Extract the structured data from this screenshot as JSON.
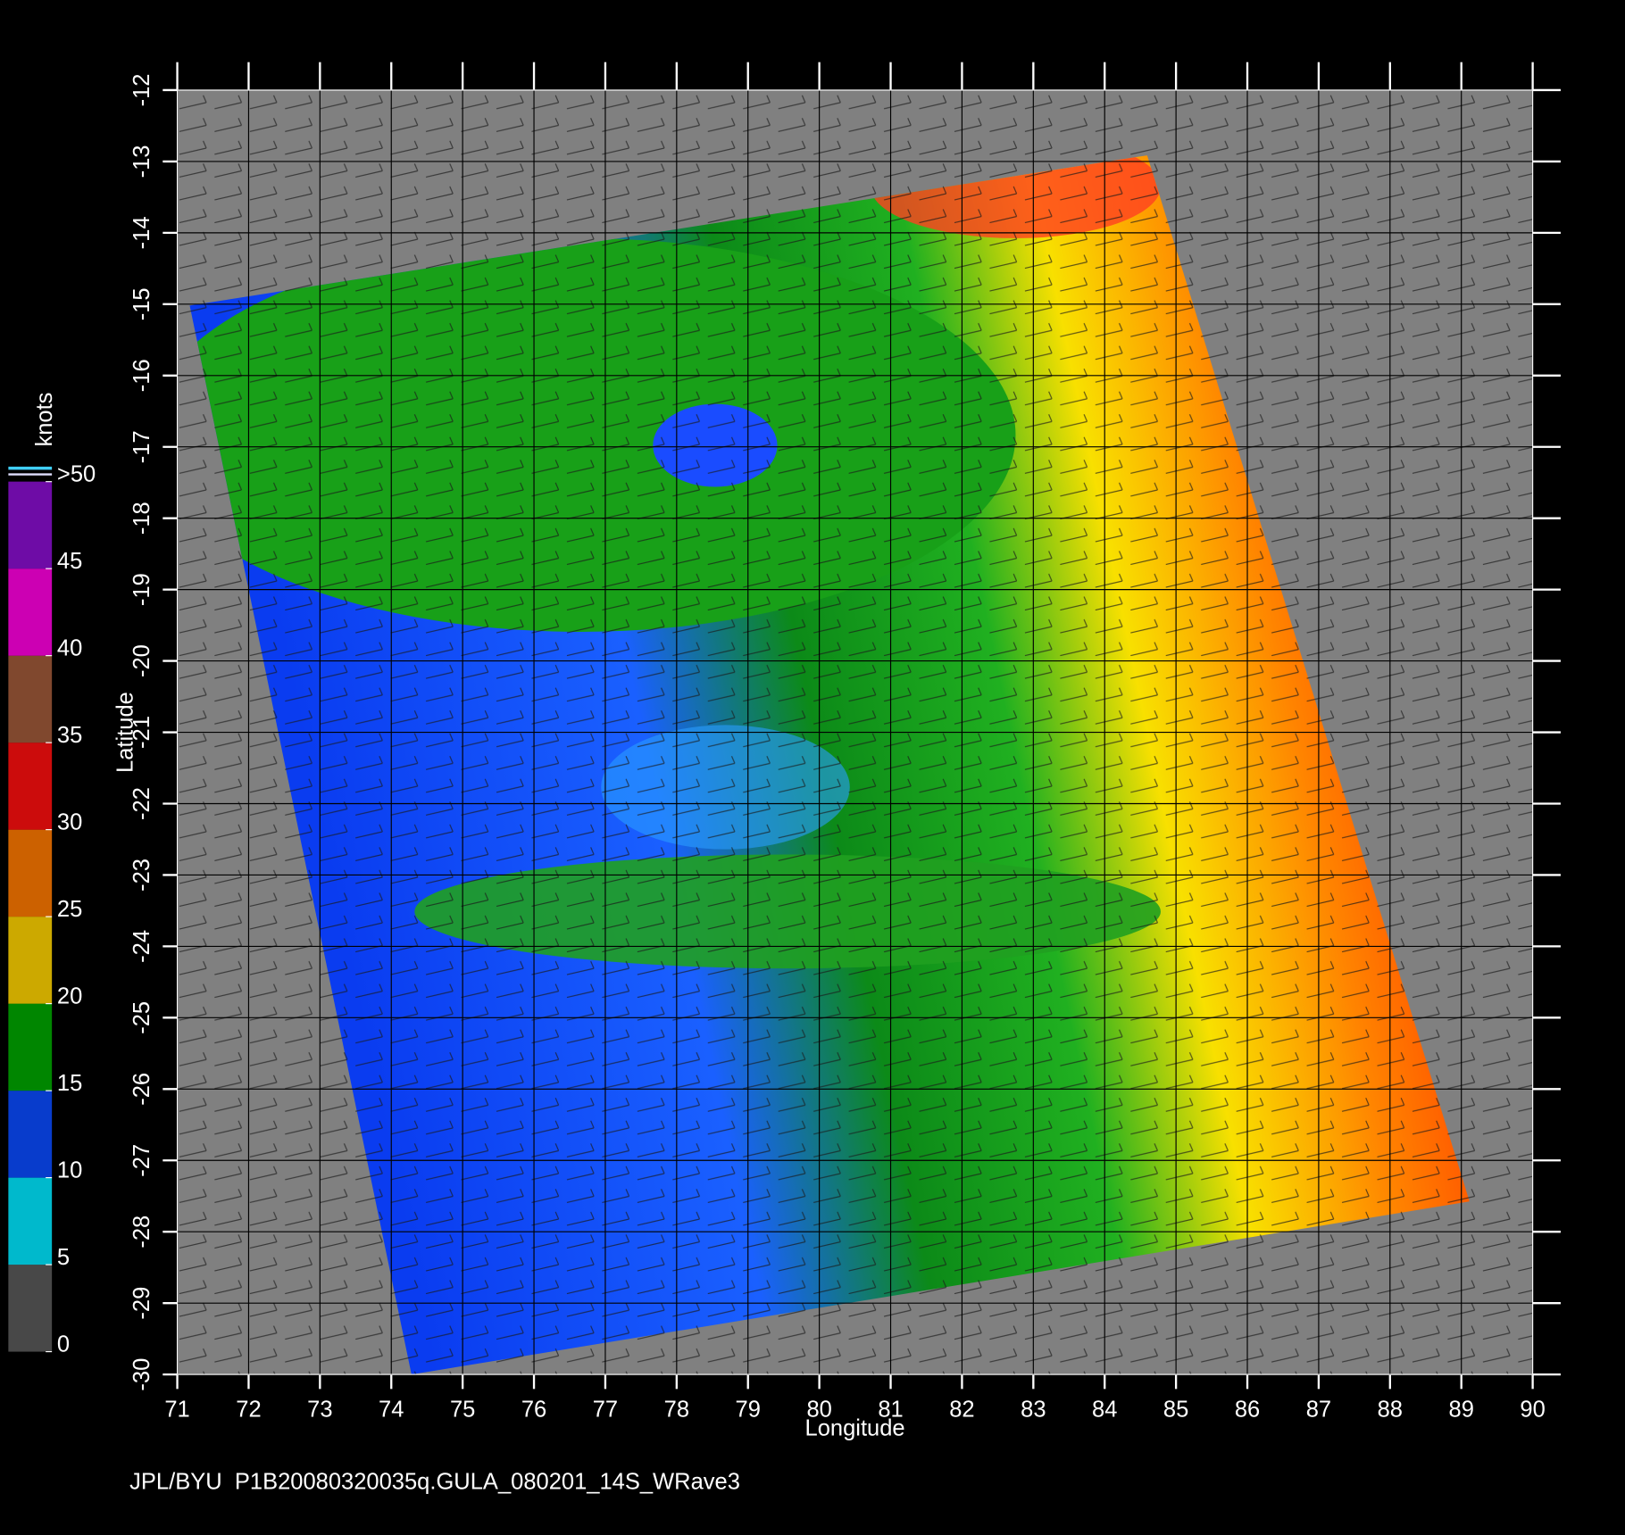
{
  "chart_data": {
    "type": "map",
    "xlabel": "Longitude",
    "ylabel": "Latitude",
    "xlim": [
      71,
      90
    ],
    "ylim": [
      -30,
      -12
    ],
    "xticks": [
      71,
      72,
      73,
      74,
      75,
      76,
      77,
      78,
      79,
      80,
      81,
      82,
      83,
      84,
      85,
      86,
      87,
      88,
      89,
      90
    ],
    "yticks": [
      -12,
      -13,
      -14,
      -15,
      -16,
      -17,
      -18,
      -19,
      -20,
      -21,
      -22,
      -23,
      -24,
      -25,
      -26,
      -27,
      -28,
      -29,
      -30
    ],
    "grid": true,
    "colorbar": {
      "label": "knots",
      "lim": [
        0,
        50
      ],
      "ticks": [
        0,
        5,
        10,
        15,
        20,
        25,
        30,
        35,
        40,
        45,
        {
          "value": 50,
          "label": ">50"
        }
      ],
      "colors": [
        "#5a5a5a",
        "#00e8ff",
        "#0a4cff",
        "#00a800",
        "#ffd400",
        "#ff7a00",
        "#ff1010",
        "#a05a3a",
        "#ff00e0",
        "#8a10d0"
      ]
    }
  },
  "footer": "JPL/BYU  P1B20080320035q.GULA_080201_14S_WRave3"
}
